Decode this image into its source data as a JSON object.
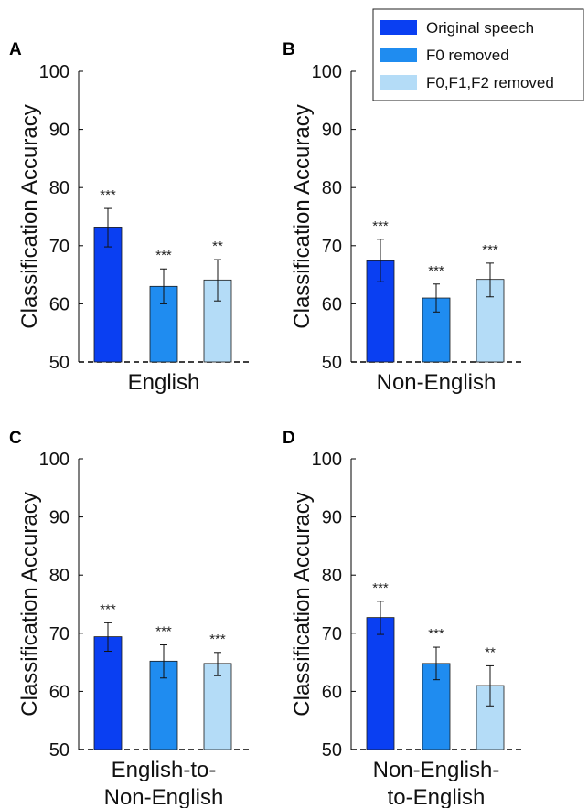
{
  "legend": [
    {
      "label": "Original speech",
      "color": "#0a3ff2"
    },
    {
      "label": "F0 removed",
      "color": "#1f8cf0"
    },
    {
      "label": "F0,F1,F2 removed",
      "color": "#b4dcf7"
    }
  ],
  "chart_data": [
    {
      "type": "bar",
      "panel": "A",
      "ylabel": "Classification Accuracy",
      "xlabel_lines": [
        "English"
      ],
      "ylim": [
        50,
        100
      ],
      "yticks": [
        "50",
        "60",
        "70",
        "80",
        "90",
        "100"
      ],
      "series": [
        {
          "name": "Original speech",
          "value": 73.2,
          "err_low": 69.8,
          "err_high": 76.4,
          "sig": "***"
        },
        {
          "name": "F0 removed",
          "value": 63.0,
          "err_low": 60.0,
          "err_high": 66.0,
          "sig": "***"
        },
        {
          "name": "F0,F1,F2 removed",
          "value": 64.1,
          "err_low": 60.5,
          "err_high": 67.6,
          "sig": "**"
        }
      ]
    },
    {
      "type": "bar",
      "panel": "B",
      "ylabel": "Classification Accuracy",
      "xlabel_lines": [
        "Non-English"
      ],
      "ylim": [
        50,
        100
      ],
      "yticks": [
        "50",
        "60",
        "70",
        "80",
        "90",
        "100"
      ],
      "series": [
        {
          "name": "Original speech",
          "value": 67.4,
          "err_low": 63.8,
          "err_high": 71.1,
          "sig": "***"
        },
        {
          "name": "F0 removed",
          "value": 61.0,
          "err_low": 58.6,
          "err_high": 63.4,
          "sig": "***"
        },
        {
          "name": "F0,F1,F2 removed",
          "value": 64.2,
          "err_low": 61.2,
          "err_high": 67.0,
          "sig": "***"
        }
      ]
    },
    {
      "type": "bar",
      "panel": "C",
      "ylabel": "Classification Accuracy",
      "xlabel_lines": [
        "English-to-",
        "Non-English"
      ],
      "ylim": [
        50,
        100
      ],
      "yticks": [
        "50",
        "60",
        "70",
        "80",
        "90",
        "100"
      ],
      "series": [
        {
          "name": "Original speech",
          "value": 69.4,
          "err_low": 66.9,
          "err_high": 71.8,
          "sig": "***"
        },
        {
          "name": "F0 removed",
          "value": 65.2,
          "err_low": 62.3,
          "err_high": 68.0,
          "sig": "***"
        },
        {
          "name": "F0,F1,F2 removed",
          "value": 64.8,
          "err_low": 62.7,
          "err_high": 66.7,
          "sig": "***"
        }
      ]
    },
    {
      "type": "bar",
      "panel": "D",
      "ylabel": "Classification Accuracy",
      "xlabel_lines": [
        "Non-English-",
        "to-English"
      ],
      "ylim": [
        50,
        100
      ],
      "yticks": [
        "50",
        "60",
        "70",
        "80",
        "90",
        "100"
      ],
      "series": [
        {
          "name": "Original speech",
          "value": 72.7,
          "err_low": 69.8,
          "err_high": 75.5,
          "sig": "***"
        },
        {
          "name": "F0 removed",
          "value": 64.8,
          "err_low": 62.0,
          "err_high": 67.6,
          "sig": "***"
        },
        {
          "name": "F0,F1,F2 removed",
          "value": 61.0,
          "err_low": 57.5,
          "err_high": 64.4,
          "sig": "**"
        }
      ]
    }
  ]
}
